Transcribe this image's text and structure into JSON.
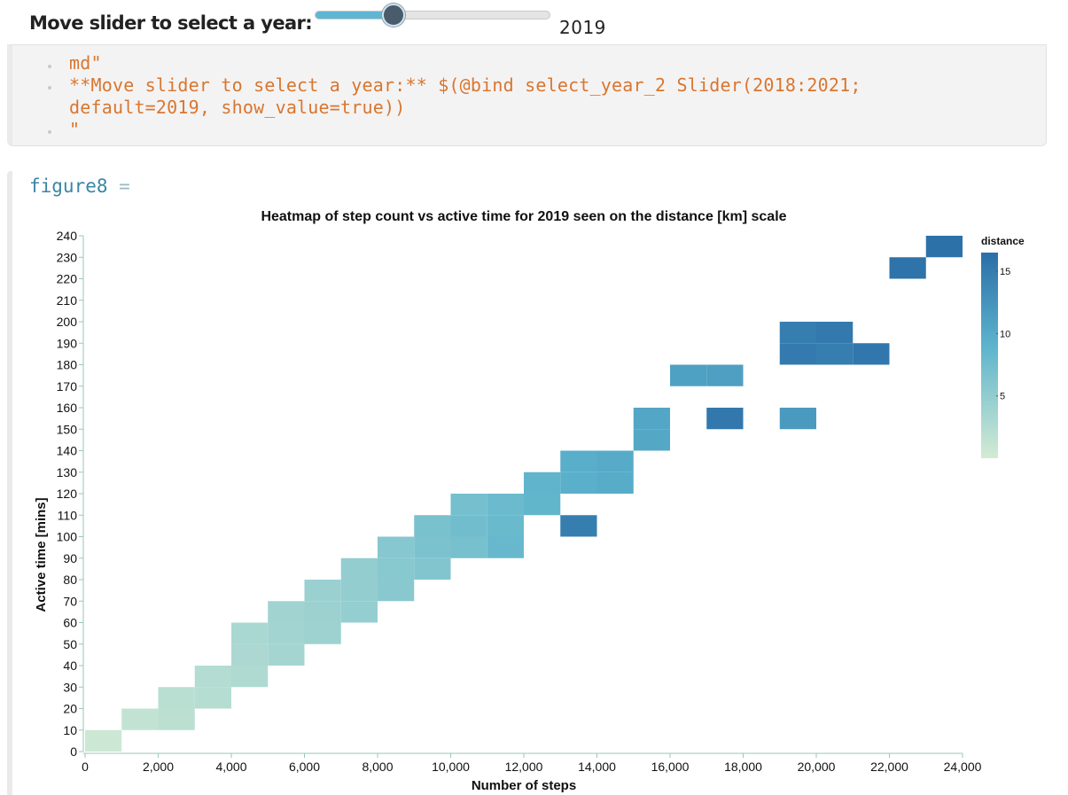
{
  "slider": {
    "label": "Move slider to select a year:",
    "value": "2019",
    "min": 2018,
    "max": 2021,
    "current": 2019,
    "fill_color": "#5fb6d2"
  },
  "code_cell": {
    "lines": [
      "md\"",
      "**Move slider to select a year:** $(@bind select_year_2 Slider(2018:2021;",
      "default=2019, show_value=true))",
      "\""
    ],
    "text_color": "#d9762f"
  },
  "output_cell": {
    "name": "figure8",
    "assign": "="
  },
  "chart_data": {
    "type": "heatmap",
    "title": "Heatmap of step count vs active time for 2019 seen on the distance [km] scale",
    "xlabel": "Number of steps",
    "ylabel": "Active time [mins]",
    "xlim": [
      0,
      24000
    ],
    "ylim": [
      0,
      240
    ],
    "x_ticks": [
      "0",
      "2,000",
      "4,000",
      "6,000",
      "8,000",
      "10,000",
      "12,000",
      "14,000",
      "16,000",
      "18,000",
      "20,000",
      "22,000",
      "24,000"
    ],
    "y_ticks": [
      "0",
      "10",
      "20",
      "30",
      "40",
      "50",
      "60",
      "70",
      "80",
      "90",
      "100",
      "110",
      "120",
      "130",
      "140",
      "150",
      "160",
      "170",
      "180",
      "190",
      "200",
      "210",
      "220",
      "230",
      "240"
    ],
    "bin_width_steps": 1000,
    "bin_height_mins": 10,
    "cells": [
      {
        "x": 0,
        "y": 0,
        "distance": 0.5
      },
      {
        "x": 1000,
        "y": 10,
        "distance": 1.3
      },
      {
        "x": 2000,
        "y": 10,
        "distance": 1.8
      },
      {
        "x": 2000,
        "y": 20,
        "distance": 2.0
      },
      {
        "x": 3000,
        "y": 30,
        "distance": 2.4
      },
      {
        "x": 3000,
        "y": 20,
        "distance": 2.3
      },
      {
        "x": 4000,
        "y": 30,
        "distance": 2.8
      },
      {
        "x": 4000,
        "y": 40,
        "distance": 3.0
      },
      {
        "x": 4000,
        "y": 50,
        "distance": 3.2
      },
      {
        "x": 5000,
        "y": 40,
        "distance": 3.6
      },
      {
        "x": 5000,
        "y": 50,
        "distance": 3.7
      },
      {
        "x": 5000,
        "y": 60,
        "distance": 3.8
      },
      {
        "x": 6000,
        "y": 50,
        "distance": 4.1
      },
      {
        "x": 6000,
        "y": 60,
        "distance": 4.2
      },
      {
        "x": 6000,
        "y": 70,
        "distance": 4.3
      },
      {
        "x": 7000,
        "y": 60,
        "distance": 4.7
      },
      {
        "x": 7000,
        "y": 70,
        "distance": 4.8
      },
      {
        "x": 7000,
        "y": 80,
        "distance": 4.9
      },
      {
        "x": 8000,
        "y": 70,
        "distance": 5.6
      },
      {
        "x": 8000,
        "y": 80,
        "distance": 5.7
      },
      {
        "x": 8000,
        "y": 90,
        "distance": 5.8
      },
      {
        "x": 9000,
        "y": 80,
        "distance": 6.1
      },
      {
        "x": 9000,
        "y": 90,
        "distance": 6.6
      },
      {
        "x": 9000,
        "y": 100,
        "distance": 6.8
      },
      {
        "x": 10000,
        "y": 90,
        "distance": 7.0
      },
      {
        "x": 10000,
        "y": 100,
        "distance": 7.4
      },
      {
        "x": 10000,
        "y": 110,
        "distance": 7.2
      },
      {
        "x": 11000,
        "y": 90,
        "distance": 8.2
      },
      {
        "x": 11000,
        "y": 100,
        "distance": 8.0
      },
      {
        "x": 11000,
        "y": 110,
        "distance": 7.9
      },
      {
        "x": 12000,
        "y": 110,
        "distance": 8.6
      },
      {
        "x": 12000,
        "y": 120,
        "distance": 8.8
      },
      {
        "x": 13000,
        "y": 120,
        "distance": 9.4
      },
      {
        "x": 13000,
        "y": 130,
        "distance": 9.6
      },
      {
        "x": 13000,
        "y": 100,
        "distance": 14.8
      },
      {
        "x": 14000,
        "y": 120,
        "distance": 9.8
      },
      {
        "x": 14000,
        "y": 130,
        "distance": 9.9
      },
      {
        "x": 15000,
        "y": 140,
        "distance": 10.3
      },
      {
        "x": 15000,
        "y": 150,
        "distance": 10.5
      },
      {
        "x": 16000,
        "y": 170,
        "distance": 11.0
      },
      {
        "x": 17000,
        "y": 170,
        "distance": 11.2
      },
      {
        "x": 17000,
        "y": 150,
        "distance": 15.4
      },
      {
        "x": 19000,
        "y": 150,
        "distance": 11.8
      },
      {
        "x": 19000,
        "y": 180,
        "distance": 15.2
      },
      {
        "x": 19000,
        "y": 190,
        "distance": 14.8
      },
      {
        "x": 20000,
        "y": 180,
        "distance": 14.9
      },
      {
        "x": 20000,
        "y": 190,
        "distance": 15.3
      },
      {
        "x": 21000,
        "y": 180,
        "distance": 15.6
      },
      {
        "x": 22000,
        "y": 220,
        "distance": 16.0
      },
      {
        "x": 23000,
        "y": 230,
        "distance": 16.2
      }
    ],
    "colorbar": {
      "title": "distance",
      "min": 0,
      "max": 16.5,
      "ticks": [
        "5",
        "10",
        "15"
      ],
      "low_color": "#d3ebd4",
      "mid_color": "#5cb3cc",
      "high_color": "#2b6ea8"
    },
    "legend_placement": "right",
    "grid": false
  }
}
